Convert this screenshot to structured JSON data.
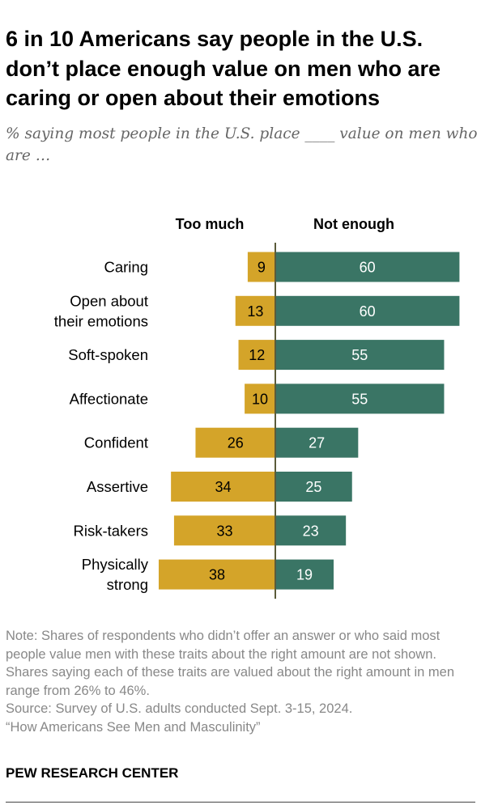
{
  "title": "6 in 10 Americans say people in the U.S. don’t place enough value on men who are caring or open about their emotions",
  "subtitle": "% saying most people in the U.S. place ____ value on men who are …",
  "chart_data": {
    "type": "bar",
    "orientation": "horizontal-diverging",
    "categories": [
      [
        "Caring"
      ],
      [
        "Open about",
        "their emotions"
      ],
      [
        "Soft-spoken"
      ],
      [
        "Affectionate"
      ],
      [
        "Confident"
      ],
      [
        "Assertive"
      ],
      [
        "Risk-takers"
      ],
      [
        "Physically",
        "strong"
      ]
    ],
    "series": [
      {
        "name": "Too much",
        "values": [
          9,
          13,
          12,
          10,
          26,
          34,
          33,
          38
        ],
        "color": "#d4a429",
        "direction": "left"
      },
      {
        "name": "Not enough",
        "values": [
          60,
          60,
          55,
          55,
          27,
          25,
          23,
          19
        ],
        "color": "#3a7565",
        "direction": "right"
      }
    ],
    "center_line_color": "#5b5b3a",
    "value_label_color_left": "#000000",
    "value_label_color_right": "#ffffff"
  },
  "note": {
    "lines": [
      "Note: Shares of respondents who didn’t offer an answer or who said most people value men with these traits about the right amount are not shown. Shares saying each of these traits are valued about the right amount in men range from 26% to 46%.",
      "Source: Survey of U.S. adults conducted Sept. 3-15, 2024.",
      "“How Americans See Men and Masculinity”"
    ]
  },
  "organization": "PEW RESEARCH CENTER"
}
